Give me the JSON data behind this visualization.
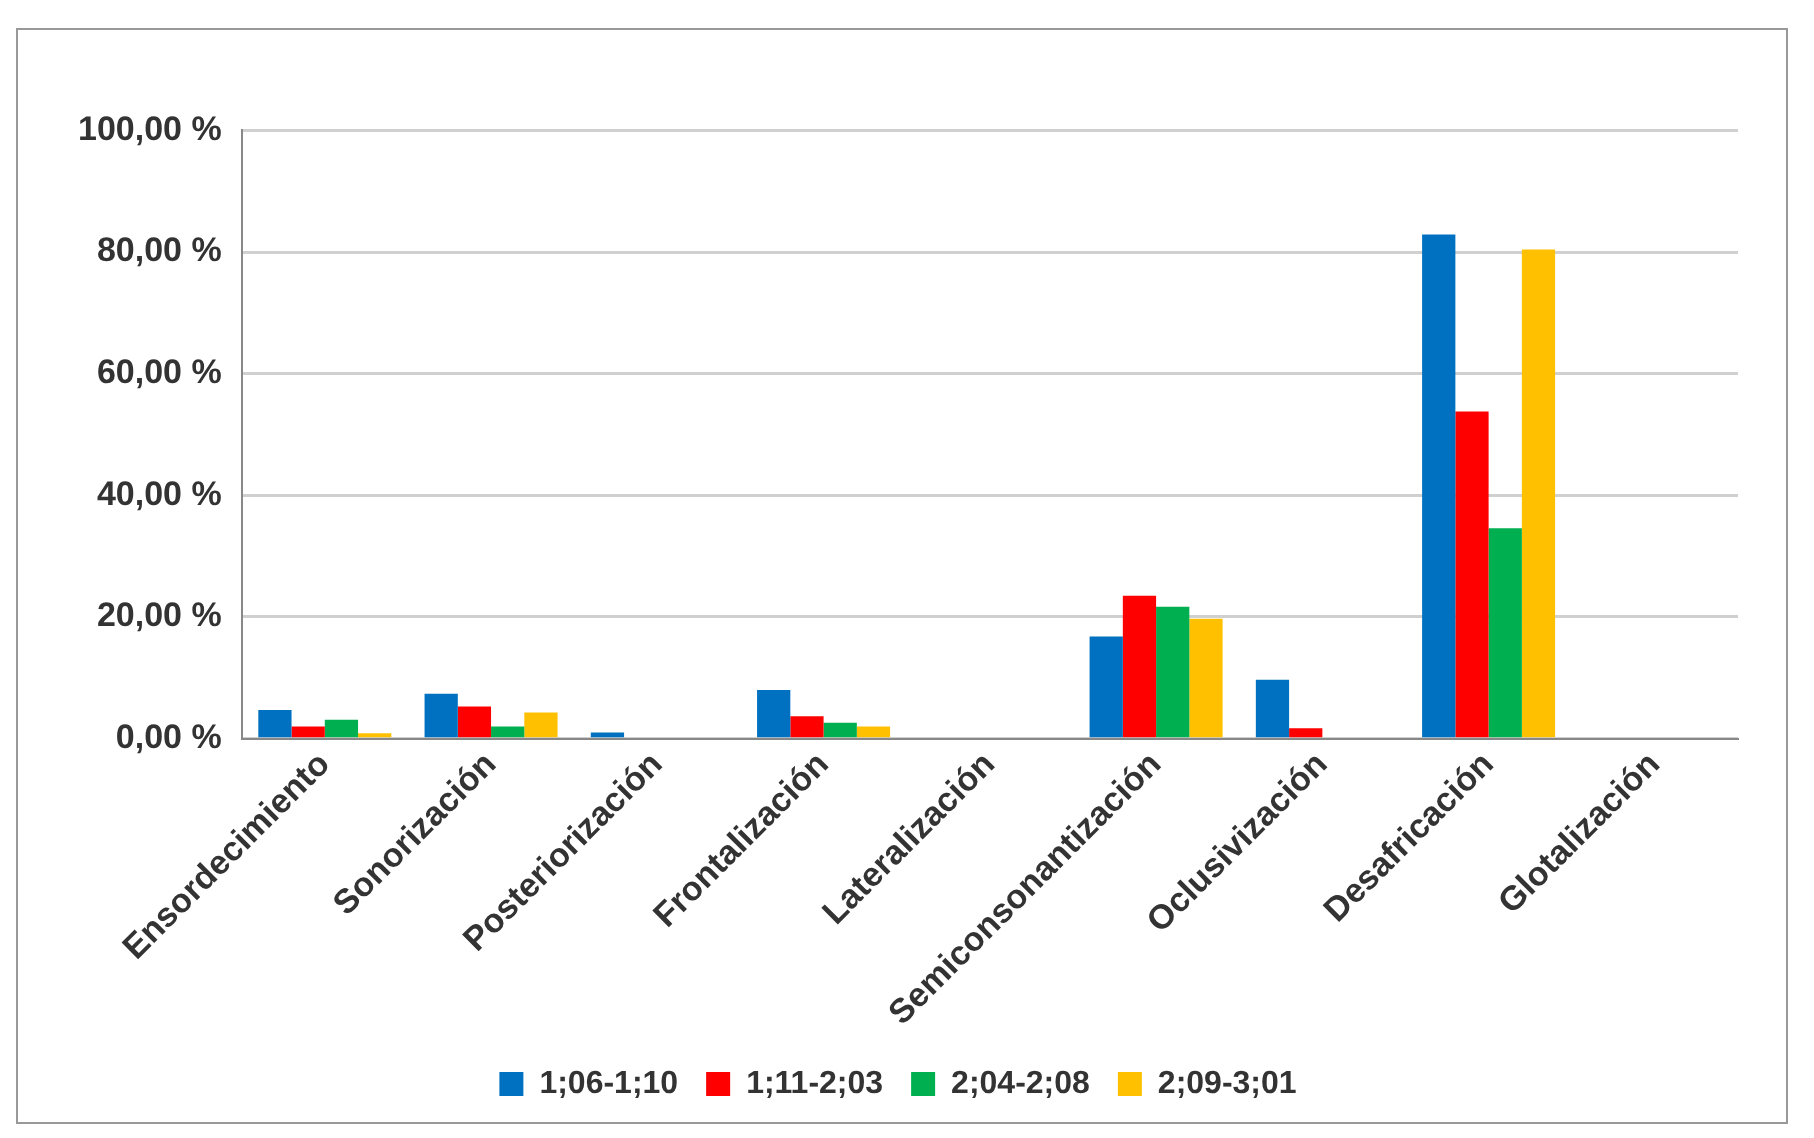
{
  "chart_data": {
    "type": "bar",
    "categories": [
      "Ensordecimiento",
      "Sonorización",
      "Posteriorización",
      "Frontalización",
      "Lateralización",
      "Semiconsonantización",
      "Oclusivización",
      "Desafricación",
      "Glotalización"
    ],
    "series": [
      {
        "name": "1;06-1;10",
        "color": "#0070c0",
        "values": [
          4.7,
          7.4,
          1,
          8,
          0,
          16.8,
          9.7,
          82.9,
          0
        ]
      },
      {
        "name": "1;11-2;03",
        "color": "#ff0000",
        "values": [
          2,
          5.3,
          0,
          3.7,
          0,
          23.5,
          1.7,
          53.8,
          0
        ]
      },
      {
        "name": "2;04-2;08",
        "color": "#00b050",
        "values": [
          3.1,
          2,
          0,
          2.6,
          0,
          21.7,
          0,
          34.6,
          0
        ]
      },
      {
        "name": "2;09-3;01",
        "color": "#ffc000",
        "values": [
          0.9,
          4.3,
          0,
          2,
          0,
          19.7,
          0,
          80.4,
          0
        ]
      }
    ],
    "ylim": [
      0,
      100
    ],
    "yticks": [
      {
        "value": 0,
        "label": "0,00 %"
      },
      {
        "value": 20,
        "label": "20,00 %"
      },
      {
        "value": 40,
        "label": "40,00 %"
      },
      {
        "value": 60,
        "label": "60,00 %"
      },
      {
        "value": 80,
        "label": "80,00 %"
      },
      {
        "value": 100,
        "label": "100,00 %"
      }
    ],
    "grid": "y",
    "legend": "bottom"
  }
}
